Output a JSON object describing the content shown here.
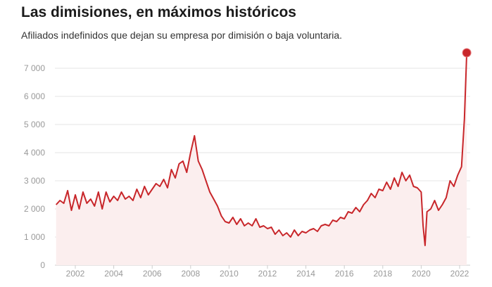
{
  "title": "Las dimisiones, en máximos históricos",
  "subtitle": "Afiliados indefinidos que dejan su empresa por dimisión o baja voluntaria.",
  "colors": {
    "line": "#c8262a",
    "area": "#fbeeee",
    "grid": "#e6e6e6",
    "axis": "#999999"
  },
  "chart_data": {
    "type": "area",
    "ylim": [
      0,
      7000
    ],
    "y_ticks": [
      "0",
      "1 000",
      "2 000",
      "3 000",
      "4 000",
      "5 000",
      "6 000",
      "7 000"
    ],
    "y_tick_values": [
      0,
      1000,
      2000,
      3000,
      4000,
      5000,
      6000,
      7000
    ],
    "x_ticks": [
      "2002",
      "2004",
      "2006",
      "2008",
      "2010",
      "2012",
      "2014",
      "2016",
      "2018",
      "2020",
      "2022"
    ],
    "x_tick_values": [
      2002,
      2004,
      2006,
      2008,
      2010,
      2012,
      2014,
      2016,
      2018,
      2020,
      2022
    ],
    "xlim": [
      2001.0,
      2022.5
    ],
    "grid": true,
    "highlight": {
      "x": 2022.37,
      "y": 7550
    },
    "series": [
      {
        "x": [
          2001.0,
          2001.2,
          2001.4,
          2001.6,
          2001.8,
          2002.0,
          2002.2,
          2002.4,
          2002.6,
          2002.8,
          2003.0,
          2003.2,
          2003.4,
          2003.6,
          2003.8,
          2004.0,
          2004.2,
          2004.4,
          2004.6,
          2004.8,
          2005.0,
          2005.2,
          2005.4,
          2005.6,
          2005.8,
          2006.0,
          2006.2,
          2006.4,
          2006.6,
          2006.8,
          2007.0,
          2007.2,
          2007.4,
          2007.6,
          2007.8,
          2008.0,
          2008.2,
          2008.4,
          2008.6,
          2008.8,
          2009.0,
          2009.2,
          2009.4,
          2009.6,
          2009.8,
          2010.0,
          2010.2,
          2010.4,
          2010.6,
          2010.8,
          2011.0,
          2011.2,
          2011.4,
          2011.6,
          2011.8,
          2012.0,
          2012.2,
          2012.4,
          2012.6,
          2012.8,
          2013.0,
          2013.2,
          2013.4,
          2013.6,
          2013.8,
          2014.0,
          2014.2,
          2014.4,
          2014.6,
          2014.8,
          2015.0,
          2015.2,
          2015.4,
          2015.6,
          2015.8,
          2016.0,
          2016.2,
          2016.4,
          2016.6,
          2016.8,
          2017.0,
          2017.2,
          2017.4,
          2017.6,
          2017.8,
          2018.0,
          2018.2,
          2018.4,
          2018.6,
          2018.8,
          2019.0,
          2019.2,
          2019.4,
          2019.6,
          2019.8,
          2020.0,
          2020.1,
          2020.2,
          2020.3,
          2020.5,
          2020.7,
          2020.9,
          2021.1,
          2021.3,
          2021.5,
          2021.7,
          2021.9,
          2022.1,
          2022.25,
          2022.37
        ],
        "y": [
          2150,
          2300,
          2200,
          2650,
          1950,
          2500,
          2000,
          2600,
          2200,
          2350,
          2100,
          2600,
          2000,
          2600,
          2250,
          2450,
          2300,
          2600,
          2350,
          2450,
          2300,
          2700,
          2400,
          2800,
          2500,
          2700,
          2900,
          2800,
          3050,
          2750,
          3400,
          3100,
          3600,
          3700,
          3300,
          4000,
          4600,
          3700,
          3400,
          3000,
          2600,
          2350,
          2100,
          1750,
          1550,
          1500,
          1700,
          1450,
          1650,
          1400,
          1500,
          1400,
          1650,
          1350,
          1400,
          1300,
          1350,
          1100,
          1250,
          1050,
          1150,
          1000,
          1250,
          1050,
          1200,
          1150,
          1250,
          1300,
          1200,
          1400,
          1450,
          1400,
          1600,
          1550,
          1700,
          1650,
          1900,
          1850,
          2050,
          1900,
          2150,
          2300,
          2550,
          2400,
          2700,
          2650,
          2950,
          2700,
          3100,
          2800,
          3300,
          3000,
          3200,
          2800,
          2750,
          2600,
          1400,
          700,
          1900,
          2000,
          2300,
          1950,
          2150,
          2400,
          3000,
          2800,
          3200,
          3500,
          5200,
          7550
        ]
      }
    ]
  }
}
